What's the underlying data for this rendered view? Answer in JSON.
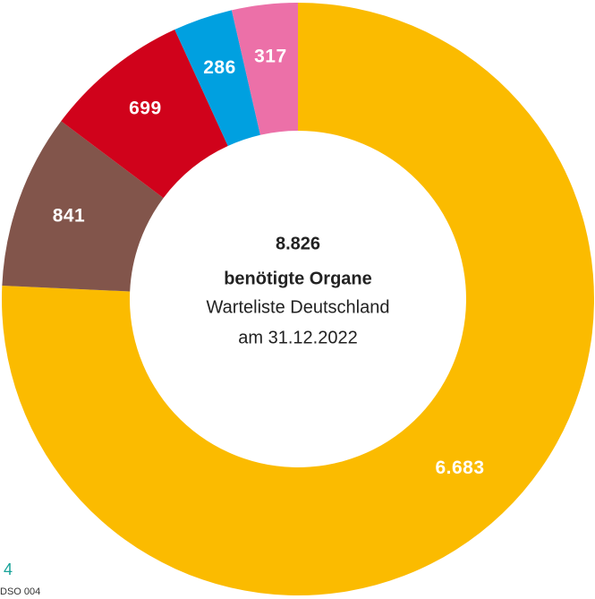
{
  "chart_data": {
    "type": "donut",
    "values": [
      6683,
      841,
      699,
      286,
      317
    ],
    "value_labels": [
      "6.683",
      "841",
      "699",
      "286",
      "317"
    ],
    "colors": [
      "#fbbb00",
      "#82554b",
      "#d0021b",
      "#00a0e0",
      "#ec70a8"
    ],
    "center_lines": [
      "8.826",
      "benötigte Organe",
      "Warteliste Deutschland",
      "am 31.12.2022"
    ]
  },
  "footer": {
    "page_number": "4",
    "source": "DSO 004"
  }
}
